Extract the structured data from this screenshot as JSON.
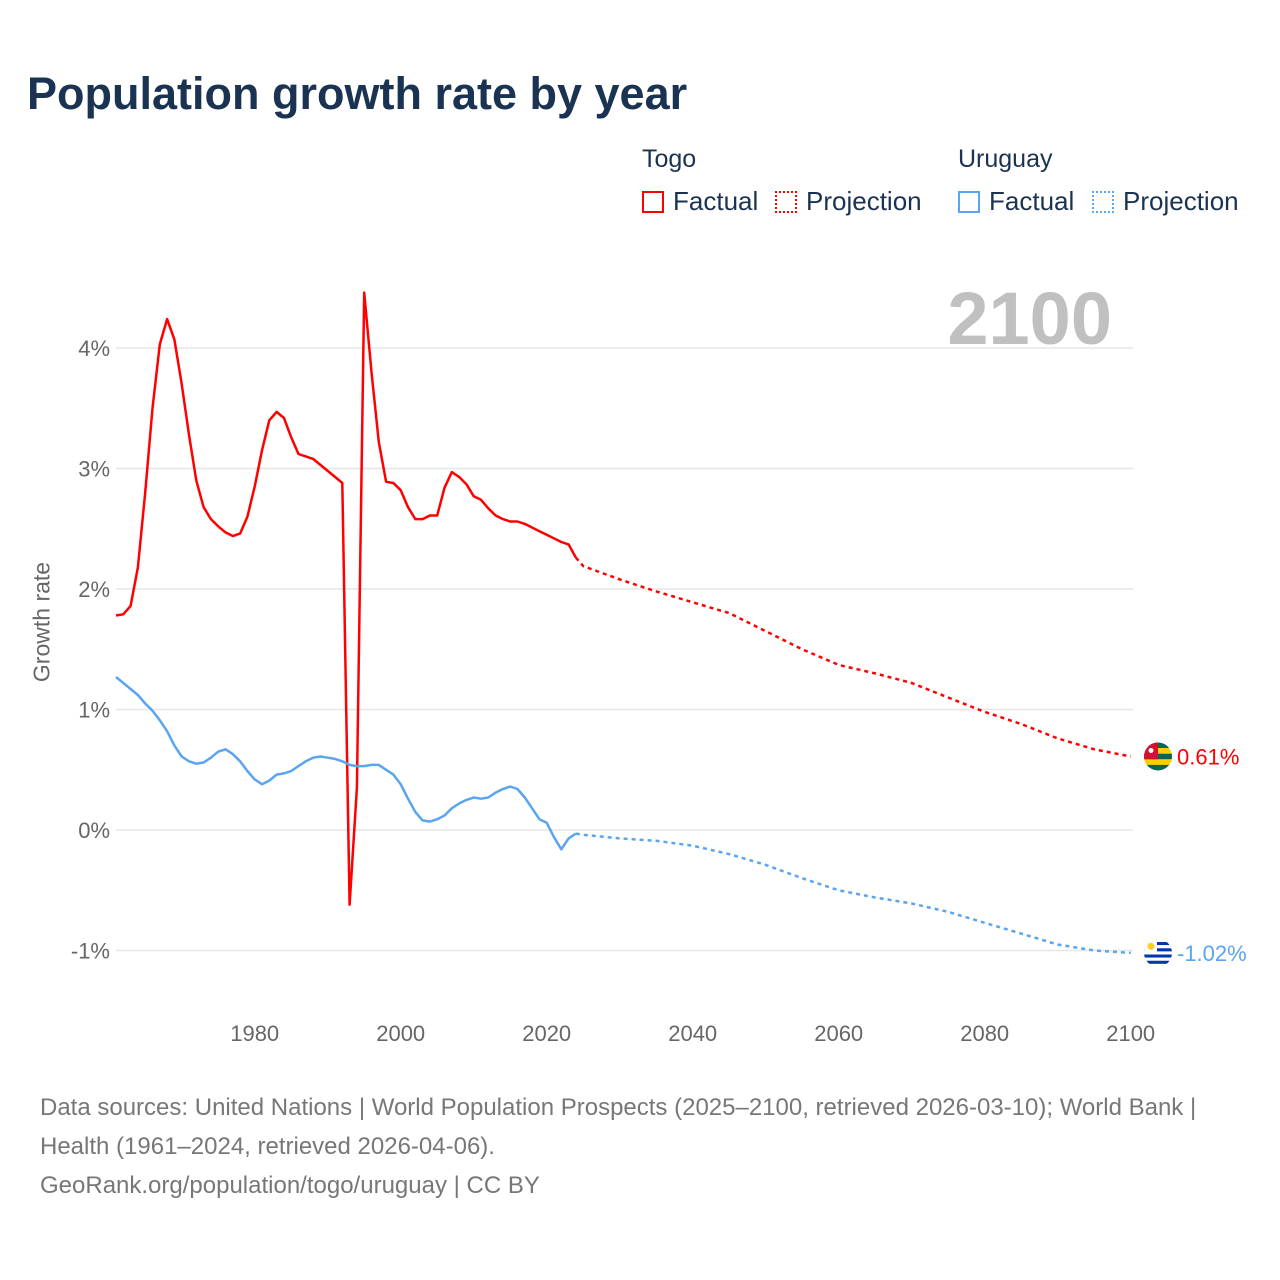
{
  "chart_data": {
    "type": "line",
    "title": "Population growth rate by year",
    "xlabel": "",
    "ylabel": "Growth rate",
    "xlim": [
      1961,
      2100
    ],
    "ylim": [
      -1.5,
      4.6
    ],
    "x_ticks": [
      1980,
      2000,
      2020,
      2040,
      2060,
      2080,
      2100
    ],
    "x_tick_labels": [
      "1980",
      "2000",
      "2020",
      "2040",
      "2060",
      "2080",
      "2100"
    ],
    "y_ticks": [
      -1,
      0,
      1,
      2,
      3,
      4
    ],
    "y_tick_labels": [
      "-1%",
      "0%",
      "1%",
      "2%",
      "3%",
      "4%"
    ],
    "grid": true,
    "current_year_label": "2100",
    "legend": {
      "placement": "top-right",
      "groups": [
        {
          "country": "Togo",
          "factual": "Factual",
          "projection": "Projection"
        },
        {
          "country": "Uruguay",
          "factual": "Factual",
          "projection": "Projection"
        }
      ]
    },
    "series": [
      {
        "name": "Togo",
        "color": "#ff0000",
        "end_label": "0.61%",
        "factual": {
          "x": [
            1961,
            1962,
            1963,
            1964,
            1965,
            1966,
            1967,
            1968,
            1969,
            1970,
            1971,
            1972,
            1973,
            1974,
            1975,
            1976,
            1977,
            1978,
            1979,
            1980,
            1981,
            1982,
            1983,
            1984,
            1985,
            1986,
            1987,
            1988,
            1989,
            1990,
            1991,
            1992,
            1993,
            1994,
            1995,
            1996,
            1997,
            1998,
            1999,
            2000,
            2001,
            2002,
            2003,
            2004,
            2005,
            2006,
            2007,
            2008,
            2009,
            2010,
            2011,
            2012,
            2013,
            2014,
            2015,
            2016,
            2017,
            2018,
            2019,
            2020,
            2021,
            2022,
            2023,
            2024
          ],
          "values": [
            1.78,
            1.79,
            1.86,
            2.18,
            2.8,
            3.5,
            4.03,
            4.24,
            4.07,
            3.7,
            3.28,
            2.9,
            2.68,
            2.58,
            2.52,
            2.47,
            2.44,
            2.46,
            2.6,
            2.85,
            3.15,
            3.4,
            3.47,
            3.42,
            3.26,
            3.12,
            3.1,
            3.08,
            3.03,
            2.98,
            2.93,
            2.88,
            -0.62,
            0.35,
            4.46,
            3.8,
            3.22,
            2.89,
            2.88,
            2.82,
            2.68,
            2.58,
            2.58,
            2.61,
            2.61,
            2.84,
            2.97,
            2.93,
            2.87,
            2.77,
            2.74,
            2.67,
            2.61,
            2.58,
            2.56,
            2.56,
            2.54,
            2.51,
            2.48,
            2.45,
            2.42,
            2.39,
            2.37,
            2.26
          ]
        },
        "projection": {
          "x": [
            2024,
            2025,
            2030,
            2035,
            2040,
            2045,
            2050,
            2055,
            2060,
            2065,
            2070,
            2075,
            2080,
            2085,
            2090,
            2095,
            2100
          ],
          "values": [
            2.26,
            2.19,
            2.08,
            1.98,
            1.89,
            1.8,
            1.65,
            1.5,
            1.37,
            1.3,
            1.22,
            1.1,
            0.98,
            0.88,
            0.76,
            0.67,
            0.61
          ]
        }
      },
      {
        "name": "Uruguay",
        "color": "#5aa5f0",
        "end_label": "-1.02%",
        "factual": {
          "x": [
            1961,
            1962,
            1963,
            1964,
            1965,
            1966,
            1967,
            1968,
            1969,
            1970,
            1971,
            1972,
            1973,
            1974,
            1975,
            1976,
            1977,
            1978,
            1979,
            1980,
            1981,
            1982,
            1983,
            1984,
            1985,
            1986,
            1987,
            1988,
            1989,
            1990,
            1991,
            1992,
            1993,
            1994,
            1995,
            1996,
            1997,
            1998,
            1999,
            2000,
            2001,
            2002,
            2003,
            2004,
            2005,
            2006,
            2007,
            2008,
            2009,
            2010,
            2011,
            2012,
            2013,
            2014,
            2015,
            2016,
            2017,
            2018,
            2019,
            2020,
            2021,
            2022,
            2023,
            2024
          ],
          "values": [
            1.27,
            1.22,
            1.17,
            1.12,
            1.05,
            0.99,
            0.91,
            0.82,
            0.7,
            0.61,
            0.57,
            0.55,
            0.56,
            0.6,
            0.65,
            0.67,
            0.63,
            0.57,
            0.49,
            0.42,
            0.38,
            0.41,
            0.46,
            0.47,
            0.49,
            0.53,
            0.57,
            0.6,
            0.61,
            0.6,
            0.59,
            0.57,
            0.54,
            0.53,
            0.53,
            0.54,
            0.54,
            0.5,
            0.46,
            0.38,
            0.26,
            0.15,
            0.08,
            0.07,
            0.09,
            0.12,
            0.18,
            0.22,
            0.25,
            0.27,
            0.26,
            0.27,
            0.31,
            0.34,
            0.36,
            0.34,
            0.27,
            0.18,
            0.09,
            0.06,
            -0.06,
            -0.16,
            -0.07,
            -0.03
          ]
        },
        "projection": {
          "x": [
            2024,
            2025,
            2030,
            2035,
            2040,
            2045,
            2050,
            2055,
            2060,
            2065,
            2070,
            2075,
            2080,
            2085,
            2090,
            2095,
            2100
          ],
          "values": [
            -0.03,
            -0.04,
            -0.07,
            -0.09,
            -0.13,
            -0.2,
            -0.29,
            -0.4,
            -0.5,
            -0.56,
            -0.61,
            -0.68,
            -0.77,
            -0.86,
            -0.95,
            -1.0,
            -1.02
          ]
        }
      }
    ]
  },
  "footer": {
    "sources": "Data sources: United Nations | World Population Prospects (2025–2100, retrieved 2026-03-10); World Bank | Health (1961–2024, retrieved 2026-04-06).",
    "credit": "GeoRank.org/population/togo/uruguay | CC BY"
  }
}
